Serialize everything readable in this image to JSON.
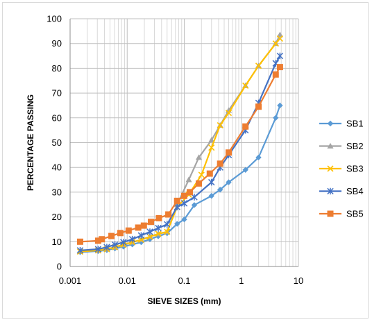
{
  "chart_data": {
    "type": "line",
    "title": "",
    "xlabel": "SIEVE SIZES (mm)",
    "ylabel": "PERCENTAGE PASSING",
    "x_scale": "log",
    "xlim": [
      0.001,
      10
    ],
    "ylim": [
      0,
      100
    ],
    "x_tick_labels": [
      "0.001",
      "0.01",
      "0.1",
      "1",
      "10"
    ],
    "y_tick_labels": [
      "0",
      "10",
      "20",
      "30",
      "40",
      "50",
      "60",
      "70",
      "80",
      "90",
      "100"
    ],
    "grid": true,
    "legend_position": "right",
    "series": [
      {
        "name": "SB1",
        "color": "#5b9bd5",
        "marker": "diamond",
        "x": [
          0.0015,
          0.0031,
          0.0044,
          0.0061,
          0.0086,
          0.0123,
          0.0176,
          0.025,
          0.035,
          0.05,
          0.075,
          0.1,
          0.15,
          0.3,
          0.425,
          0.6,
          1.18,
          2.0,
          4.0,
          4.75
        ],
        "y": [
          5.8,
          6.2,
          6.6,
          7.3,
          8.0,
          8.9,
          9.8,
          11.0,
          12.2,
          13.4,
          17.2,
          19.0,
          24.8,
          28.5,
          31.0,
          34.0,
          39.0,
          44.0,
          60.0,
          65.0
        ]
      },
      {
        "name": "SB2",
        "color": "#a5a5a5",
        "marker": "triangle",
        "x": [
          0.0015,
          0.0031,
          0.0044,
          0.0061,
          0.0086,
          0.0123,
          0.0176,
          0.025,
          0.035,
          0.05,
          0.075,
          0.12,
          0.18,
          0.3,
          0.425,
          0.6,
          1.18,
          2.0,
          4.0,
          4.75
        ],
        "y": [
          6.0,
          6.5,
          7.0,
          7.8,
          8.8,
          9.8,
          10.8,
          12.0,
          13.2,
          14.0,
          25.0,
          35.0,
          44.0,
          51.0,
          57.0,
          63.0,
          73.0,
          81.0,
          90.0,
          93.5
        ]
      },
      {
        "name": "SB3",
        "color": "#ffc000",
        "marker": "x",
        "x": [
          0.0015,
          0.0031,
          0.0044,
          0.0061,
          0.0086,
          0.0123,
          0.0176,
          0.025,
          0.035,
          0.05,
          0.075,
          0.12,
          0.2,
          0.3,
          0.425,
          0.6,
          1.18,
          2.0,
          4.0,
          4.75
        ],
        "y": [
          6.0,
          6.5,
          7.0,
          7.8,
          8.8,
          9.8,
          10.8,
          12.0,
          13.2,
          14.0,
          24.0,
          29.0,
          37.0,
          48.0,
          57.0,
          62.0,
          73.0,
          81.0,
          90.0,
          92.0
        ]
      },
      {
        "name": "SB4",
        "color": "#4472c4",
        "marker": "star",
        "x": [
          0.0015,
          0.0031,
          0.0044,
          0.0061,
          0.0086,
          0.0123,
          0.0176,
          0.025,
          0.035,
          0.05,
          0.075,
          0.1,
          0.15,
          0.3,
          0.425,
          0.6,
          1.18,
          2.0,
          4.0,
          4.75
        ],
        "y": [
          6.5,
          7.0,
          7.8,
          8.8,
          9.8,
          11.0,
          12.5,
          14.0,
          15.5,
          17.0,
          24.0,
          25.5,
          28.0,
          34.0,
          40.0,
          45.0,
          55.0,
          66.0,
          82.0,
          85.0
        ]
      },
      {
        "name": "SB5",
        "color": "#ed7d31",
        "marker": "square",
        "x": [
          0.0015,
          0.0031,
          0.0036,
          0.0053,
          0.0076,
          0.0106,
          0.0156,
          0.0196,
          0.0261,
          0.036,
          0.0526,
          0.075,
          0.1,
          0.125,
          0.18,
          0.28,
          0.425,
          0.6,
          1.18,
          2.0,
          4.0,
          4.75
        ],
        "y": [
          10.0,
          10.4,
          11.0,
          12.3,
          13.5,
          14.5,
          15.7,
          16.5,
          18.0,
          19.5,
          21.0,
          26.5,
          28.5,
          30.0,
          33.5,
          37.5,
          41.5,
          46.0,
          56.5,
          64.5,
          77.5,
          80.5
        ]
      }
    ]
  }
}
